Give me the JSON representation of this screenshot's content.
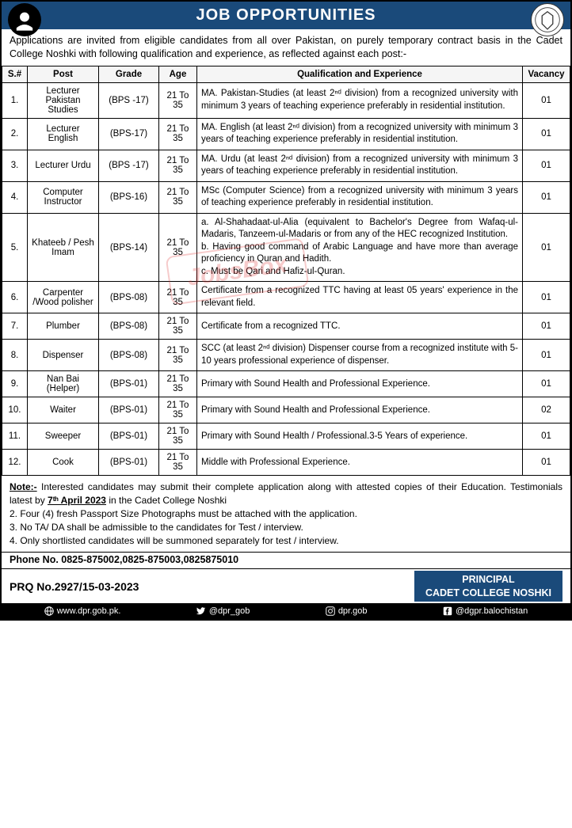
{
  "header": {
    "title": "JOB OPPORTUNITIES"
  },
  "intro": "Applications are invited from eligible candidates from all over Pakistan, on purely temporary contract basis in the Cadet College Noshki with following qualification and experience, as reflected against each post:-",
  "table": {
    "headers": [
      "S.#",
      "Post",
      "Grade",
      "Age",
      "Qualification and Experience",
      "Vacancy"
    ],
    "rows": [
      {
        "sn": "1.",
        "post": "Lecturer Pakistan Studies",
        "grade": "(BPS -17)",
        "age": "21 To 35",
        "qual": "MA. Pakistan-Studies (at least 2ⁿᵈ division) from a recognized university with minimum 3 years of teaching experience preferably in residential institution.",
        "vac": "01"
      },
      {
        "sn": "2.",
        "post": "Lecturer English",
        "grade": "(BPS-17)",
        "age": "21 To 35",
        "qual": "MA. English (at least 2ⁿᵈ division) from a recognized university with minimum 3 years of teaching experience preferably in residential institution.",
        "vac": "01"
      },
      {
        "sn": "3.",
        "post": "Lecturer Urdu",
        "grade": "(BPS -17)",
        "age": "21 To 35",
        "qual": "MA. Urdu (at least 2ⁿᵈ division) from a recognized university with minimum 3 years of teaching experience preferably in residential institution.",
        "vac": "01"
      },
      {
        "sn": "4.",
        "post": "Computer Instructor",
        "grade": "(BPS-16)",
        "age": "21 To 35",
        "qual": "MSc (Computer Science) from a recognized university with minimum 3 years of teaching experience preferably in residential institution.",
        "vac": "01"
      },
      {
        "sn": "5.",
        "post": "Khateeb / Pesh Imam",
        "grade": "(BPS-14)",
        "age": "21 To 35",
        "qual": "a. Al-Shahadaat-ul-Alia (equivalent to Bachelor's Degree from Wafaq-ul-Madaris, Tanzeem-ul-Madaris or from any of the HEC recognized Institution.\nb. Having good command of Arabic Language and have more than average proficiency in Quran and Hadith.\nc. Must be Qari and Hafiz-ul-Quran.",
        "vac": "01"
      },
      {
        "sn": "6.",
        "post": "Carpenter /Wood polisher",
        "grade": "(BPS-08)",
        "age": "21 To 35",
        "qual": "Certificate from a recognized TTC having at least 05 years' experience in the relevant field.",
        "vac": "01"
      },
      {
        "sn": "7.",
        "post": "Plumber",
        "grade": "(BPS-08)",
        "age": "21 To 35",
        "qual": "Certificate from a recognized TTC.",
        "vac": "01"
      },
      {
        "sn": "8.",
        "post": "Dispenser",
        "grade": "(BPS-08)",
        "age": "21 To 35",
        "qual": "SCC (at least 2ⁿᵈ division) Dispenser course from a recognized institute with 5-10 years professional experience of dispenser.",
        "vac": "01"
      },
      {
        "sn": "9.",
        "post": "Nan Bai (Helper)",
        "grade": "(BPS-01)",
        "age": "21 To 35",
        "qual": "Primary with Sound Health and Professional Experience.",
        "vac": "01"
      },
      {
        "sn": "10.",
        "post": "Waiter",
        "grade": "(BPS-01)",
        "age": "21 To 35",
        "qual": "Primary with Sound Health and Professional Experience.",
        "vac": "02"
      },
      {
        "sn": "11.",
        "post": "Sweeper",
        "grade": "(BPS-01)",
        "age": "21 To 35",
        "qual": "Primary with Sound Health / Professional.3-5 Years of experience.",
        "vac": "01"
      },
      {
        "sn": "12.",
        "post": "Cook",
        "grade": "(BPS-01)",
        "age": "21 To 35",
        "qual": "Middle with Professional Experience.",
        "vac": "01"
      }
    ]
  },
  "notes": {
    "label": "Note:-",
    "n1": " Interested candidates may submit their complete application along with attested copies of their Education. Testimonials latest by ",
    "deadline": "7ᵗʰ April 2023",
    "n1b": " in the    Cadet College Noshki",
    "n2": "2.    Four (4) fresh Passport Size Photographs must be attached with the application.",
    "n3": "3.    No TA/ DA shall be admissible to the candidates for Test / interview.",
    "n4": "4.    Only shortlisted candidates will be summoned separately for test / interview."
  },
  "phone": "Phone No. 0825-875002,0825-875003,0825875010",
  "prq": "PRQ No.2927/15-03-2023",
  "principal": {
    "line1": "PRINCIPAL",
    "line2": "CADET COLLEGE NOSHKI"
  },
  "footer": {
    "web": "www.dpr.gob.pk.",
    "twitter": "@dpr_gob",
    "insta": "dpr.gob",
    "fb": "@dgpr.balochistan"
  },
  "watermark": "JobsBox",
  "colors": {
    "header_bg": "#1a4a7a",
    "header_text": "#ffffff",
    "footer_bg": "#000000",
    "border": "#000000",
    "watermark": "#d33333"
  },
  "col_widths": [
    "32px",
    "90px",
    "70px",
    "48px",
    "auto",
    "60px"
  ]
}
